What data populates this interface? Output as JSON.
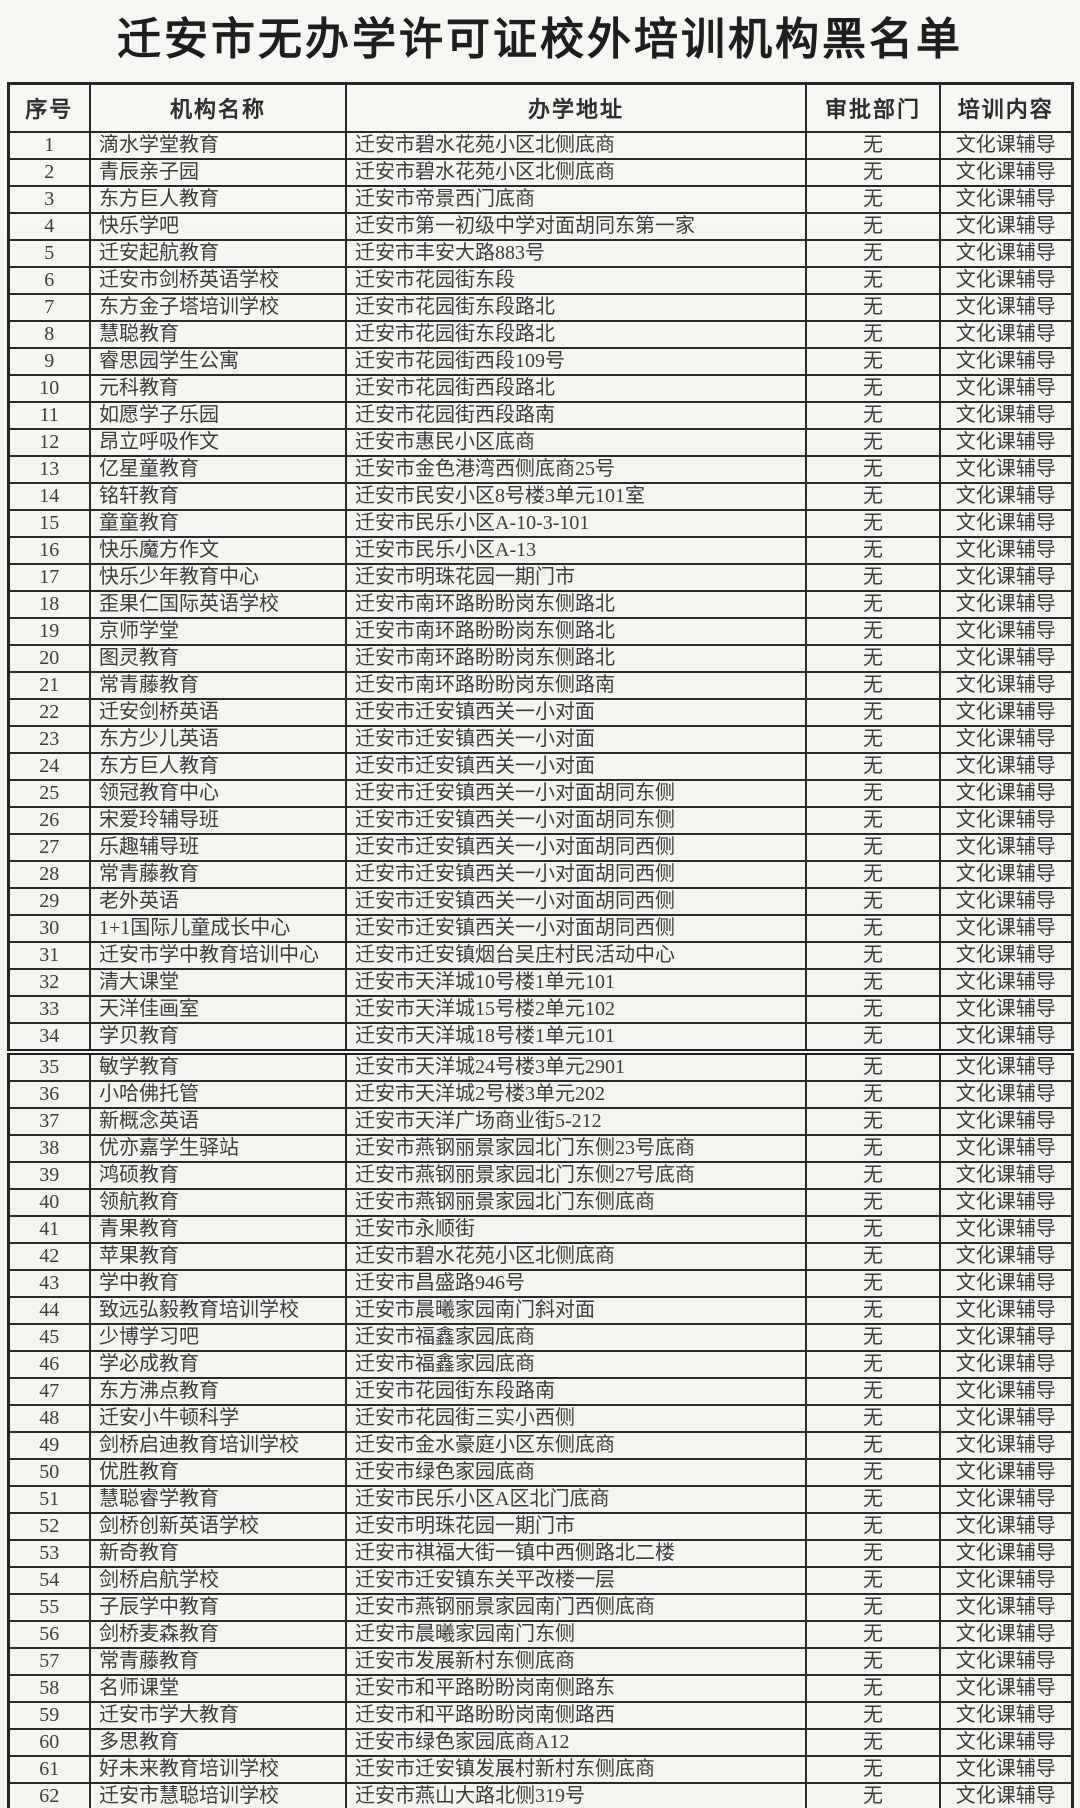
{
  "document": {
    "title": "迁安市无办学许可证校外培训机构黑名单"
  },
  "table": {
    "columns": [
      "序号",
      "机构名称",
      "办学地址",
      "审批部门",
      "培训内容"
    ],
    "page_break_after_serial": 34,
    "rows": [
      [
        "1",
        "滴水学堂教育",
        "迁安市碧水花苑小区北侧底商",
        "无",
        "文化课辅导"
      ],
      [
        "2",
        "青辰亲子园",
        "迁安市碧水花苑小区北侧底商",
        "无",
        "文化课辅导"
      ],
      [
        "3",
        "东方巨人教育",
        "迁安市帝景西门底商",
        "无",
        "文化课辅导"
      ],
      [
        "4",
        "快乐学吧",
        "迁安市第一初级中学对面胡同东第一家",
        "无",
        "文化课辅导"
      ],
      [
        "5",
        "迁安起航教育",
        "迁安市丰安大路883号",
        "无",
        "文化课辅导"
      ],
      [
        "6",
        "迁安市剑桥英语学校",
        "迁安市花园街东段",
        "无",
        "文化课辅导"
      ],
      [
        "7",
        "东方金子塔培训学校",
        "迁安市花园街东段路北",
        "无",
        "文化课辅导"
      ],
      [
        "8",
        "慧聪教育",
        "迁安市花园街东段路北",
        "无",
        "文化课辅导"
      ],
      [
        "9",
        "睿思园学生公寓",
        "迁安市花园街西段109号",
        "无",
        "文化课辅导"
      ],
      [
        "10",
        "元科教育",
        "迁安市花园街西段路北",
        "无",
        "文化课辅导"
      ],
      [
        "11",
        "如愿学子乐园",
        "迁安市花园街西段路南",
        "无",
        "文化课辅导"
      ],
      [
        "12",
        "昂立呼吸作文",
        "迁安市惠民小区底商",
        "无",
        "文化课辅导"
      ],
      [
        "13",
        "亿星童教育",
        "迁安市金色港湾西侧底商25号",
        "无",
        "文化课辅导"
      ],
      [
        "14",
        "铭轩教育",
        "迁安市民安小区8号楼3单元101室",
        "无",
        "文化课辅导"
      ],
      [
        "15",
        "童童教育",
        "迁安市民乐小区A-10-3-101",
        "无",
        "文化课辅导"
      ],
      [
        "16",
        "快乐魔方作文",
        "迁安市民乐小区A-13",
        "无",
        "文化课辅导"
      ],
      [
        "17",
        "快乐少年教育中心",
        "迁安市明珠花园一期门市",
        "无",
        "文化课辅导"
      ],
      [
        "18",
        "歪果仁国际英语学校",
        "迁安市南环路盼盼岗东侧路北",
        "无",
        "文化课辅导"
      ],
      [
        "19",
        "京师学堂",
        "迁安市南环路盼盼岗东侧路北",
        "无",
        "文化课辅导"
      ],
      [
        "20",
        "图灵教育",
        "迁安市南环路盼盼岗东侧路北",
        "无",
        "文化课辅导"
      ],
      [
        "21",
        "常青藤教育",
        "迁安市南环路盼盼岗东侧路南",
        "无",
        "文化课辅导"
      ],
      [
        "22",
        "迁安剑桥英语",
        "迁安市迁安镇西关一小对面",
        "无",
        "文化课辅导"
      ],
      [
        "23",
        "东方少儿英语",
        "迁安市迁安镇西关一小对面",
        "无",
        "文化课辅导"
      ],
      [
        "24",
        "东方巨人教育",
        "迁安市迁安镇西关一小对面",
        "无",
        "文化课辅导"
      ],
      [
        "25",
        "领冠教育中心",
        "迁安市迁安镇西关一小对面胡同东侧",
        "无",
        "文化课辅导"
      ],
      [
        "26",
        "宋爱玲辅导班",
        "迁安市迁安镇西关一小对面胡同东侧",
        "无",
        "文化课辅导"
      ],
      [
        "27",
        "乐趣辅导班",
        "迁安市迁安镇西关一小对面胡同西侧",
        "无",
        "文化课辅导"
      ],
      [
        "28",
        "常青藤教育",
        "迁安市迁安镇西关一小对面胡同西侧",
        "无",
        "文化课辅导"
      ],
      [
        "29",
        "老外英语",
        "迁安市迁安镇西关一小对面胡同西侧",
        "无",
        "文化课辅导"
      ],
      [
        "30",
        "1+1国际儿童成长中心",
        "迁安市迁安镇西关一小对面胡同西侧",
        "无",
        "文化课辅导"
      ],
      [
        "31",
        "迁安市学中教育培训中心",
        "迁安市迁安镇烟台吴庄村民活动中心",
        "无",
        "文化课辅导"
      ],
      [
        "32",
        "清大课堂",
        "迁安市天洋城10号楼1单元101",
        "无",
        "文化课辅导"
      ],
      [
        "33",
        "天洋佳画室",
        "迁安市天洋城15号楼2单元102",
        "无",
        "文化课辅导"
      ],
      [
        "34",
        "学贝教育",
        "迁安市天洋城18号楼1单元101",
        "无",
        "文化课辅导"
      ],
      [
        "35",
        "敏学教育",
        "迁安市天洋城24号楼3单元2901",
        "无",
        "文化课辅导"
      ],
      [
        "36",
        "小哈佛托管",
        "迁安市天洋城2号楼3单元202",
        "无",
        "文化课辅导"
      ],
      [
        "37",
        "新概念英语",
        "迁安市天洋广场商业街5-212",
        "无",
        "文化课辅导"
      ],
      [
        "38",
        "优亦嘉学生驿站",
        "迁安市燕钢丽景家园北门东侧23号底商",
        "无",
        "文化课辅导"
      ],
      [
        "39",
        "鸿硕教育",
        "迁安市燕钢丽景家园北门东侧27号底商",
        "无",
        "文化课辅导"
      ],
      [
        "40",
        "领航教育",
        "迁安市燕钢丽景家园北门东侧底商",
        "无",
        "文化课辅导"
      ],
      [
        "41",
        "青果教育",
        "迁安市永顺街",
        "无",
        "文化课辅导"
      ],
      [
        "42",
        "苹果教育",
        "迁安市碧水花苑小区北侧底商",
        "无",
        "文化课辅导"
      ],
      [
        "43",
        "学中教育",
        "迁安市昌盛路946号",
        "无",
        "文化课辅导"
      ],
      [
        "44",
        "致远弘毅教育培训学校",
        "迁安市晨曦家园南门斜对面",
        "无",
        "文化课辅导"
      ],
      [
        "45",
        "少博学习吧",
        "迁安市福鑫家园底商",
        "无",
        "文化课辅导"
      ],
      [
        "46",
        "学必成教育",
        "迁安市福鑫家园底商",
        "无",
        "文化课辅导"
      ],
      [
        "47",
        "东方沸点教育",
        "迁安市花园街东段路南",
        "无",
        "文化课辅导"
      ],
      [
        "48",
        "迁安小牛顿科学",
        "迁安市花园街三实小西侧",
        "无",
        "文化课辅导"
      ],
      [
        "49",
        "剑桥启迪教育培训学校",
        "迁安市金水豪庭小区东侧底商",
        "无",
        "文化课辅导"
      ],
      [
        "50",
        "优胜教育",
        "迁安市绿色家园底商",
        "无",
        "文化课辅导"
      ],
      [
        "51",
        "慧聪睿学教育",
        "迁安市民乐小区A区北门底商",
        "无",
        "文化课辅导"
      ],
      [
        "52",
        "剑桥创新英语学校",
        "迁安市明珠花园一期门市",
        "无",
        "文化课辅导"
      ],
      [
        "53",
        "新奇教育",
        "迁安市祺福大街一镇中西侧路北二楼",
        "无",
        "文化课辅导"
      ],
      [
        "54",
        "剑桥启航学校",
        "迁安市迁安镇东关平改楼一层",
        "无",
        "文化课辅导"
      ],
      [
        "55",
        "子辰学中教育",
        "迁安市燕钢丽景家园南门西侧底商",
        "无",
        "文化课辅导"
      ],
      [
        "56",
        "剑桥麦森教育",
        "迁安市晨曦家园南门东侧",
        "无",
        "文化课辅导"
      ],
      [
        "57",
        "常青藤教育",
        "迁安市发展新村东侧底商",
        "无",
        "文化课辅导"
      ],
      [
        "58",
        "名师课堂",
        "迁安市和平路盼盼岗南侧路东",
        "无",
        "文化课辅导"
      ],
      [
        "59",
        "迁安市学大教育",
        "迁安市和平路盼盼岗南侧路西",
        "无",
        "文化课辅导"
      ],
      [
        "60",
        "多思教育",
        "迁安市绿色家园底商A12",
        "无",
        "文化课辅导"
      ],
      [
        "61",
        "好未来教育培训学校",
        "迁安市迁安镇发展村新村东侧底商",
        "无",
        "文化课辅导"
      ],
      [
        "62",
        "迁安市慧聪培训学校",
        "迁安市燕山大路北侧319号",
        "无",
        "文化课辅导"
      ]
    ]
  },
  "colors": {
    "paper": "#f5f4f0",
    "ink": "#3c3c3c",
    "border": "#2a2a2a"
  }
}
